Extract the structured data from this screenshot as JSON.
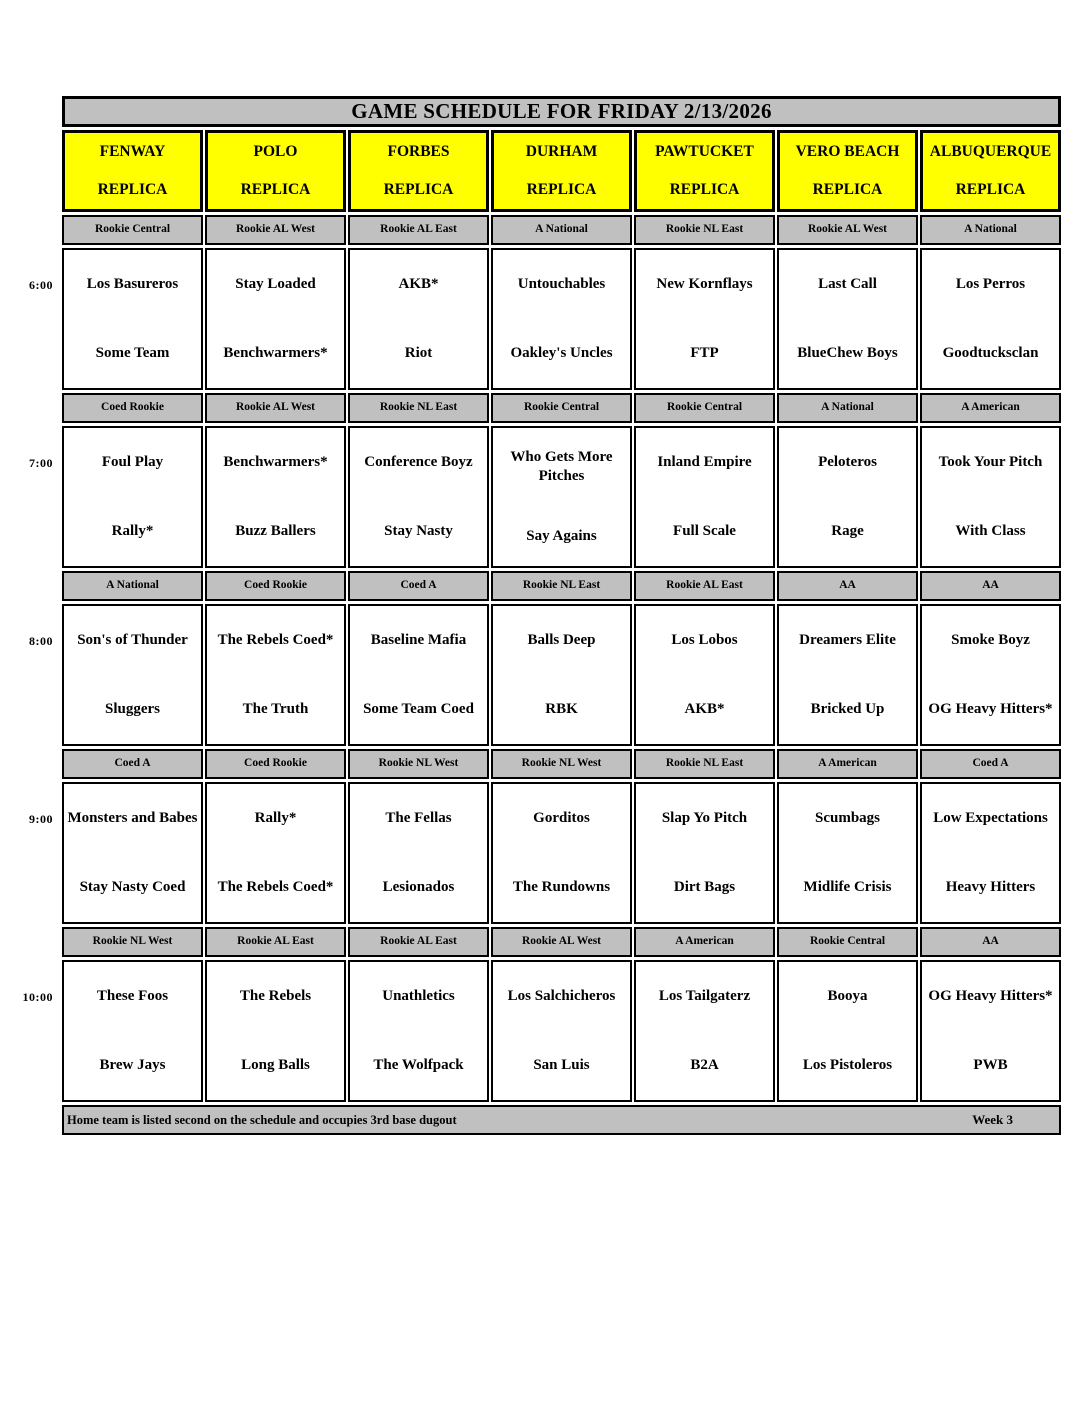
{
  "title": "GAME SCHEDULE FOR FRIDAY 2/13/2026",
  "venues": [
    {
      "name": "FENWAY",
      "sub": "REPLICA"
    },
    {
      "name": "POLO",
      "sub": "REPLICA"
    },
    {
      "name": "FORBES",
      "sub": "REPLICA"
    },
    {
      "name": "DURHAM",
      "sub": "REPLICA"
    },
    {
      "name": "PAWTUCKET",
      "sub": "REPLICA"
    },
    {
      "name": "VERO BEACH",
      "sub": "REPLICA"
    },
    {
      "name": "ALBUQUERQUE",
      "sub": "REPLICA"
    }
  ],
  "slots": [
    {
      "time": "6:00",
      "games": [
        {
          "division": "Rookie Central",
          "away": "Los Basureros",
          "home": "Some Team"
        },
        {
          "division": "Rookie AL West",
          "away": "Stay Loaded",
          "home": "Benchwarmers*"
        },
        {
          "division": "Rookie AL East",
          "away": "AKB*",
          "home": "Riot"
        },
        {
          "division": "A National",
          "away": "Untouchables",
          "home": "Oakley's Uncles"
        },
        {
          "division": "Rookie NL East",
          "away": "New Kornflays",
          "home": "FTP"
        },
        {
          "division": "Rookie AL West",
          "away": "Last Call",
          "home": "BlueChew Boys"
        },
        {
          "division": "A National",
          "away": "Los Perros",
          "home": "Goodtucksclan"
        }
      ]
    },
    {
      "time": "7:00",
      "games": [
        {
          "division": "Coed Rookie",
          "away": "Foul Play",
          "home": "Rally*"
        },
        {
          "division": "Rookie AL West",
          "away": "Benchwarmers*",
          "home": "Buzz Ballers"
        },
        {
          "division": "Rookie NL East",
          "away": "Conference Boyz",
          "home": "Stay Nasty"
        },
        {
          "division": "Rookie Central",
          "away": "Who Gets More Pitches",
          "home": "Say Agains"
        },
        {
          "division": "Rookie Central",
          "away": "Inland Empire",
          "home": "Full Scale"
        },
        {
          "division": "A National",
          "away": "Peloteros",
          "home": "Rage"
        },
        {
          "division": "A American",
          "away": "Took Your Pitch",
          "home": "With Class"
        }
      ]
    },
    {
      "time": "8:00",
      "games": [
        {
          "division": "A National",
          "away": "Son's of Thunder",
          "home": "Sluggers"
        },
        {
          "division": "Coed Rookie",
          "away": "The Rebels Coed*",
          "home": "The Truth"
        },
        {
          "division": "Coed A",
          "away": "Baseline Mafia",
          "home": "Some Team Coed"
        },
        {
          "division": "Rookie NL East",
          "away": "Balls Deep",
          "home": "RBK"
        },
        {
          "division": "Rookie AL East",
          "away": "Los Lobos",
          "home": "AKB*"
        },
        {
          "division": "AA",
          "away": "Dreamers Elite",
          "home": "Bricked Up"
        },
        {
          "division": "AA",
          "away": "Smoke Boyz",
          "home": "OG Heavy Hitters*"
        }
      ]
    },
    {
      "time": "9:00",
      "games": [
        {
          "division": "Coed A",
          "away": "Monsters and Babes",
          "home": "Stay Nasty Coed"
        },
        {
          "division": "Coed Rookie",
          "away": "Rally*",
          "home": "The Rebels Coed*"
        },
        {
          "division": "Rookie NL West",
          "away": "The Fellas",
          "home": "Lesionados"
        },
        {
          "division": "Rookie NL West",
          "away": "Gorditos",
          "home": "The Rundowns"
        },
        {
          "division": "Rookie NL East",
          "away": "Slap Yo Pitch",
          "home": "Dirt Bags"
        },
        {
          "division": "A American",
          "away": "Scumbags",
          "home": "Midlife Crisis"
        },
        {
          "division": "Coed A",
          "away": "Low Expectations",
          "home": "Heavy Hitters"
        }
      ]
    },
    {
      "time": "10:00",
      "games": [
        {
          "division": "Rookie NL West",
          "away": "These Foos",
          "home": "Brew Jays"
        },
        {
          "division": "Rookie AL East",
          "away": "The Rebels",
          "home": "Long Balls"
        },
        {
          "division": "Rookie AL East",
          "away": "Unathletics",
          "home": "The Wolfpack"
        },
        {
          "division": "Rookie AL West",
          "away": "Los Salchicheros",
          "home": "San Luis"
        },
        {
          "division": "A American",
          "away": "Los Tailgaterz",
          "home": "B2A"
        },
        {
          "division": "Rookie Central",
          "away": "Booya",
          "home": "Los Pistoleros"
        },
        {
          "division": "AA",
          "away": "OG Heavy Hitters*",
          "home": "PWB"
        }
      ]
    }
  ],
  "footer": {
    "note": "Home team is listed second on the schedule and occupies 3rd base dugout",
    "week": "Week 3"
  },
  "colors": {
    "title_bar": "#c0c0c0",
    "venue_header": "#ffff00",
    "division_bar": "#c0c0c0",
    "border": "#000000",
    "page_bg": "#ffffff"
  }
}
